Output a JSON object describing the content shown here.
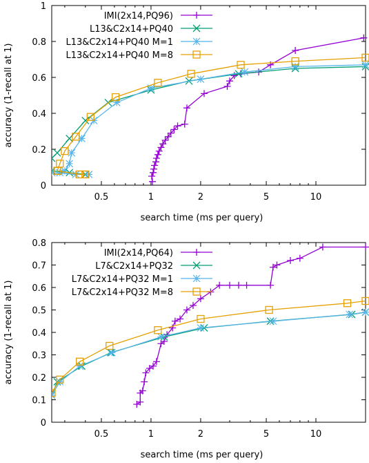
{
  "chart_data": [
    {
      "type": "line",
      "xscale": "log",
      "xlabel": "search time (ms per query)",
      "ylabel": "accuracy (1-recall at 1)",
      "xlim": [
        0.25,
        20
      ],
      "ylim": [
        0,
        1
      ],
      "xticks": [
        0.5,
        1,
        2,
        5,
        10
      ],
      "xtick_labels": [
        "0.5",
        "1",
        "2",
        "5",
        "10"
      ],
      "yticks": [
        0,
        0.2,
        0.4,
        0.6,
        0.8,
        1
      ],
      "ytick_labels": [
        "0",
        "0.2",
        "0.4",
        "0.6",
        "0.8",
        "1"
      ],
      "grid": false,
      "legend": "top-right",
      "series": [
        {
          "name": "IMI(2x14,PQ96)",
          "color": "#9400d3",
          "marker": "plus",
          "points": [
            [
              1.02,
              0.02
            ],
            [
              1.01,
              0.05
            ],
            [
              1.03,
              0.07
            ],
            [
              1.04,
              0.09
            ],
            [
              1.05,
              0.11
            ],
            [
              1.07,
              0.13
            ],
            [
              1.08,
              0.15
            ],
            [
              1.1,
              0.17
            ],
            [
              1.12,
              0.19
            ],
            [
              1.15,
              0.21
            ],
            [
              1.18,
              0.23
            ],
            [
              1.22,
              0.25
            ],
            [
              1.27,
              0.27
            ],
            [
              1.32,
              0.29
            ],
            [
              1.38,
              0.31
            ],
            [
              1.45,
              0.33
            ],
            [
              1.6,
              0.34
            ],
            [
              1.65,
              0.43
            ],
            [
              2.1,
              0.51
            ],
            [
              2.9,
              0.55
            ],
            [
              3.0,
              0.58
            ],
            [
              3.2,
              0.61
            ],
            [
              3.5,
              0.62
            ],
            [
              4.5,
              0.63
            ],
            [
              5.3,
              0.67
            ],
            [
              7.5,
              0.75
            ],
            [
              19.5,
              0.82
            ]
          ]
        },
        {
          "name": "L13&C2x14+PQ40",
          "color": "#009e73",
          "marker": "x",
          "points": [
            [
              0.25,
              0.15
            ],
            [
              0.27,
              0.18
            ],
            [
              0.32,
              0.26
            ],
            [
              0.4,
              0.36
            ],
            [
              0.55,
              0.46
            ],
            [
              1.0,
              0.53
            ],
            [
              1.7,
              0.58
            ],
            [
              3.4,
              0.62
            ],
            [
              7.5,
              0.65
            ],
            [
              20,
              0.66
            ]
          ]
        },
        {
          "name": "L13&C2x14+PQ40 M=1",
          "color": "#56b4e9",
          "marker": "star",
          "points": [
            [
              0.28,
              0.07
            ],
            [
              0.3,
              0.08
            ],
            [
              0.32,
              0.12
            ],
            [
              0.33,
              0.18
            ],
            [
              0.38,
              0.26
            ],
            [
              0.45,
              0.36
            ],
            [
              0.62,
              0.46
            ],
            [
              1.0,
              0.54
            ],
            [
              2.0,
              0.59
            ],
            [
              3.7,
              0.63
            ],
            [
              7.5,
              0.66
            ],
            [
              20,
              0.67
            ]
          ]
        },
        {
          "name": "L13&C2x14+PQ40 M=8",
          "color": "#e69f00",
          "marker": "square",
          "points": [
            [
              0.27,
              0.08
            ],
            [
              0.28,
              0.12
            ],
            [
              0.3,
              0.19
            ],
            [
              0.35,
              0.27
            ],
            [
              0.43,
              0.38
            ],
            [
              0.61,
              0.49
            ],
            [
              1.1,
              0.57
            ],
            [
              1.75,
              0.62
            ],
            [
              3.5,
              0.67
            ],
            [
              7.5,
              0.69
            ],
            [
              20,
              0.71
            ]
          ]
        },
        {
          "name": "",
          "color": "#009e73",
          "marker": "x",
          "points": [
            [
              0.25,
              0.08
            ],
            [
              0.32,
              0.07
            ],
            [
              0.4,
              0.06
            ]
          ]
        },
        {
          "name": "",
          "color": "#56b4e9",
          "marker": "star",
          "points": [
            [
              0.25,
              0.07
            ],
            [
              0.35,
              0.06
            ],
            [
              0.42,
              0.06
            ]
          ]
        },
        {
          "name": "",
          "color": "#e69f00",
          "marker": "square",
          "points": [
            [
              0.27,
              0.08
            ],
            [
              0.37,
              0.06
            ],
            [
              0.4,
              0.06
            ]
          ]
        }
      ]
    },
    {
      "type": "line",
      "xscale": "log",
      "xlabel": "search time (ms per query)",
      "ylabel": "accuracy (1-recall at 1)",
      "xlim": [
        0.25,
        20
      ],
      "ylim": [
        0,
        0.8
      ],
      "xticks": [
        0.5,
        1,
        2,
        5,
        10
      ],
      "xtick_labels": [
        "0.5",
        "1",
        "2",
        "5",
        "10"
      ],
      "yticks": [
        0,
        0.1,
        0.2,
        0.3,
        0.4,
        0.5,
        0.6,
        0.7,
        0.8
      ],
      "ytick_labels": [
        "0",
        "0.1",
        "0.2",
        "0.3",
        "0.4",
        "0.5",
        "0.6",
        "0.7",
        "0.8"
      ],
      "grid": false,
      "legend": "top-right",
      "series": [
        {
          "name": "IMI(2x14,PQ64)",
          "color": "#9400d3",
          "marker": "plus",
          "points": [
            [
              0.82,
              0.08
            ],
            [
              0.86,
              0.09
            ],
            [
              0.86,
              0.13
            ],
            [
              0.89,
              0.14
            ],
            [
              0.91,
              0.18
            ],
            [
              0.93,
              0.22
            ],
            [
              0.98,
              0.24
            ],
            [
              1.03,
              0.25
            ],
            [
              1.08,
              0.27
            ],
            [
              1.15,
              0.35
            ],
            [
              1.2,
              0.36
            ],
            [
              1.25,
              0.39
            ],
            [
              1.35,
              0.42
            ],
            [
              1.4,
              0.45
            ],
            [
              1.5,
              0.46
            ],
            [
              1.65,
              0.5
            ],
            [
              1.8,
              0.52
            ],
            [
              2.0,
              0.55
            ],
            [
              2.3,
              0.58
            ],
            [
              2.6,
              0.61
            ],
            [
              3.0,
              0.61
            ],
            [
              3.4,
              0.61
            ],
            [
              3.8,
              0.61
            ],
            [
              5.3,
              0.61
            ],
            [
              5.5,
              0.69
            ],
            [
              5.8,
              0.7
            ],
            [
              7,
              0.72
            ],
            [
              8,
              0.73
            ],
            [
              11,
              0.78
            ],
            [
              20,
              0.78
            ]
          ]
        },
        {
          "name": "L7&C2x14+PQ32",
          "color": "#009e73",
          "marker": "x",
          "points": [
            [
              0.25,
              0.12
            ],
            [
              0.27,
              0.18
            ],
            [
              0.38,
              0.25
            ],
            [
              0.57,
              0.31
            ],
            [
              1.2,
              0.38
            ],
            [
              2.1,
              0.42
            ],
            [
              5.3,
              0.45
            ],
            [
              16.5,
              0.48
            ],
            [
              20,
              0.49
            ]
          ]
        },
        {
          "name": "L7&C2x14+PQ32 M=1",
          "color": "#56b4e9",
          "marker": "star",
          "points": [
            [
              0.25,
              0.12
            ],
            [
              0.28,
              0.18
            ],
            [
              0.37,
              0.25
            ],
            [
              0.58,
              0.31
            ],
            [
              1.15,
              0.38
            ],
            [
              2.0,
              0.42
            ],
            [
              5.5,
              0.45
            ],
            [
              16,
              0.48
            ],
            [
              20,
              0.49
            ]
          ]
        },
        {
          "name": "L7&C2x14+PQ32 M=8",
          "color": "#e69f00",
          "marker": "square",
          "points": [
            [
              0.25,
              0.13
            ],
            [
              0.28,
              0.19
            ],
            [
              0.37,
              0.27
            ],
            [
              0.56,
              0.34
            ],
            [
              1.1,
              0.41
            ],
            [
              2.0,
              0.46
            ],
            [
              5.2,
              0.5
            ],
            [
              15.5,
              0.53
            ],
            [
              20,
              0.54
            ]
          ]
        }
      ]
    }
  ]
}
